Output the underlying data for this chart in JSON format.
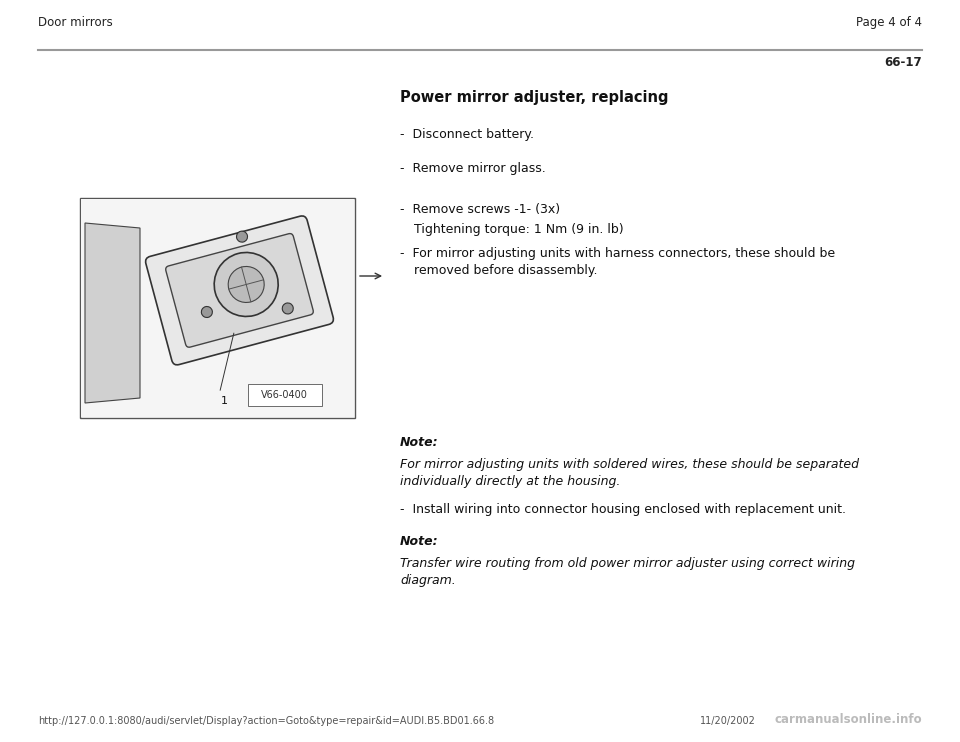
{
  "bg_color": "#ffffff",
  "header_left": "Door mirrors",
  "header_right": "Page 4 of 4",
  "page_number": "66-17",
  "title": "Power mirror adjuster, replacing",
  "bullet1": "-  Disconnect battery.",
  "bullet2": "-  Remove mirror glass.",
  "cb1": "-  Remove screws -1- (3x)",
  "cb2": "   Tightening torque: 1 Nm (9 in. lb)",
  "cb3a": "-  For mirror adjusting units with harness connectors, these should be",
  "cb3b": "   removed before disassembly.",
  "note1_label": "Note:",
  "note1_line1": "For mirror adjusting units with soldered wires, these should be separated",
  "note1_line2": "individually directly at the housing.",
  "install": "-  Install wiring into connector housing enclosed with replacement unit.",
  "note2_label": "Note:",
  "note2_line1": "Transfer wire routing from old power mirror adjuster using correct wiring",
  "note2_line2": "diagram.",
  "image_label": "V66-0400",
  "footer_url": "http://127.0.0.1:8080/audi/servlet/Display?action=Goto&type=repair&id=AUDI.B5.BD01.66.8",
  "footer_date": "11/20/2002",
  "footer_brand": "carmanualsonline.info"
}
